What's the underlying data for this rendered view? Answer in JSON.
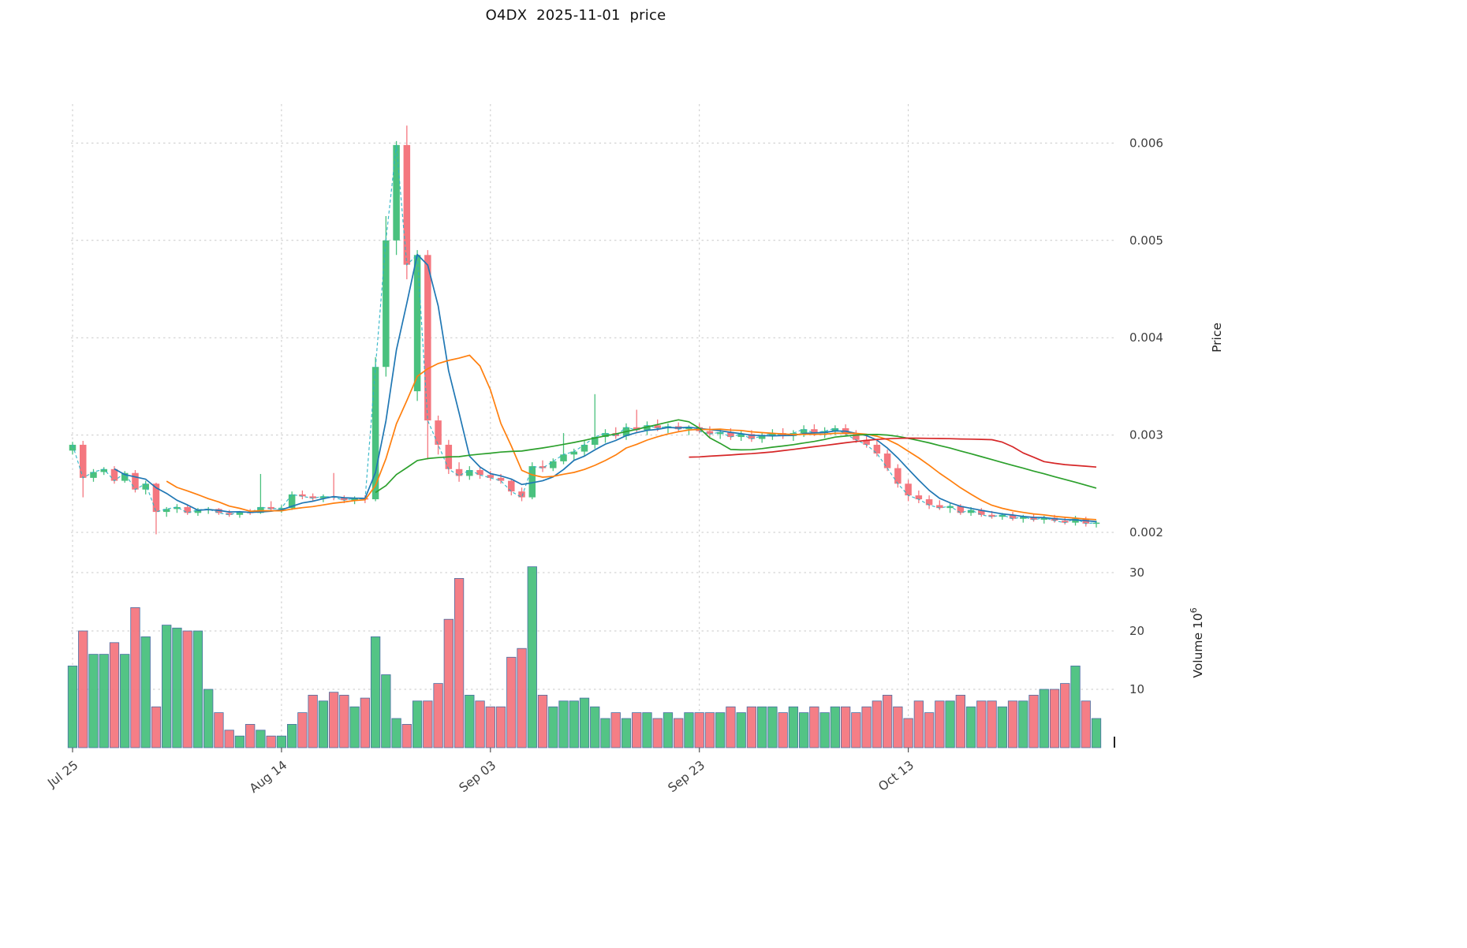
{
  "header": {
    "title": "O4DX  2025-11-01  price"
  },
  "axes": {
    "price_label": "Price",
    "volume_label_text": "Volume  10",
    "volume_label_exp": "6",
    "price_ticks": [
      {
        "v": 0.002,
        "label": "0.002"
      },
      {
        "v": 0.003,
        "label": "0.003"
      },
      {
        "v": 0.004,
        "label": "0.004"
      },
      {
        "v": 0.005,
        "label": "0.005"
      },
      {
        "v": 0.006,
        "label": "0.006"
      }
    ],
    "volume_ticks": [
      {
        "v": 10,
        "label": "10"
      },
      {
        "v": 20,
        "label": "20"
      },
      {
        "v": 30,
        "label": "30"
      }
    ],
    "x_ticks": [
      {
        "i": 0,
        "label": "Jul 25"
      },
      {
        "i": 20,
        "label": "Aug 14"
      },
      {
        "i": 40,
        "label": "Sep 03"
      },
      {
        "i": 60,
        "label": "Sep 23"
      },
      {
        "i": 80,
        "label": "Oct 13"
      }
    ]
  },
  "colors": {
    "up": "#4ac17e",
    "down": "#f4777f",
    "volume_edge": "#4a6fa5",
    "grid": "#c9c9c9",
    "tick_text": "#3f3f3f",
    "axis_label_text": "#222222"
  },
  "chart_data": {
    "type": "candlestick",
    "title": "O4DX  2025-11-01  price",
    "ylabel_price": "Price",
    "ylabel_volume": "Volume 10^6",
    "num_candles": 99,
    "price_ylim": [
      0.0019,
      0.0063
    ],
    "volume_ylim_millions": [
      0,
      37
    ],
    "grid": "dashed",
    "legend": "none",
    "x_tick_labels": [
      "Jul 25",
      "Aug 14",
      "Sep 03",
      "Sep 23",
      "Oct 13"
    ],
    "x_tick_indices": [
      0,
      20,
      40,
      60,
      80
    ],
    "open": [
      0.00284,
      0.0029,
      0.00256,
      0.00262,
      0.00265,
      0.00253,
      0.00261,
      0.00244,
      0.0025,
      0.00221,
      0.00224,
      0.00226,
      0.0022,
      0.00223,
      0.00224,
      0.0022,
      0.00218,
      0.00221,
      0.0022,
      0.00226,
      0.00224,
      0.00225,
      0.00239,
      0.00237,
      0.00235,
      0.00237,
      0.00236,
      0.00233,
      0.00235,
      0.00234,
      0.0037,
      0.005,
      0.00598,
      0.00345,
      0.00485,
      0.00315,
      0.0029,
      0.00265,
      0.00258,
      0.00264,
      0.00259,
      0.00256,
      0.00253,
      0.00242,
      0.00236,
      0.00268,
      0.00266,
      0.00273,
      0.0028,
      0.00283,
      0.0029,
      0.00298,
      0.00302,
      0.00299,
      0.00308,
      0.00305,
      0.0031,
      0.00307,
      0.00309,
      0.00306,
      0.00308,
      0.00304,
      0.00301,
      0.00303,
      0.00298,
      0.00301,
      0.00296,
      0.00299,
      0.00302,
      0.00299,
      0.00302,
      0.00306,
      0.00302,
      0.00304,
      0.00307,
      0.00301,
      0.00295,
      0.0029,
      0.00281,
      0.00266,
      0.0025,
      0.00238,
      0.00234,
      0.00228,
      0.00225,
      0.00227,
      0.0022,
      0.00223,
      0.00218,
      0.00216,
      0.00218,
      0.00214,
      0.00216,
      0.00213,
      0.00215,
      0.00212,
      0.0021,
      0.00214,
      0.00209
    ],
    "high": [
      0.00293,
      0.00294,
      0.00265,
      0.00267,
      0.00268,
      0.00263,
      0.00264,
      0.00253,
      0.00251,
      0.00226,
      0.00229,
      0.00228,
      0.00225,
      0.00226,
      0.00225,
      0.00223,
      0.00222,
      0.00224,
      0.0026,
      0.00232,
      0.00228,
      0.00242,
      0.00243,
      0.0024,
      0.00239,
      0.00261,
      0.00238,
      0.00237,
      0.00238,
      0.0038,
      0.00525,
      0.00602,
      0.00618,
      0.0049,
      0.0049,
      0.0032,
      0.00295,
      0.00272,
      0.00268,
      0.00267,
      0.00263,
      0.0026,
      0.00255,
      0.00246,
      0.00272,
      0.00274,
      0.00276,
      0.00302,
      0.00286,
      0.00294,
      0.00342,
      0.00306,
      0.00308,
      0.00312,
      0.00326,
      0.00314,
      0.00316,
      0.00312,
      0.00313,
      0.0031,
      0.00312,
      0.00309,
      0.00306,
      0.00307,
      0.00304,
      0.00305,
      0.00302,
      0.00306,
      0.00307,
      0.00305,
      0.0031,
      0.00311,
      0.00308,
      0.0031,
      0.00311,
      0.00305,
      0.003,
      0.00294,
      0.00285,
      0.0027,
      0.00254,
      0.00243,
      0.00238,
      0.00233,
      0.0023,
      0.00229,
      0.00226,
      0.00225,
      0.00222,
      0.0022,
      0.00221,
      0.00218,
      0.00219,
      0.00217,
      0.00218,
      0.00216,
      0.00217,
      0.00216,
      0.00212
    ],
    "low": [
      0.0028,
      0.00236,
      0.00252,
      0.00259,
      0.0025,
      0.00251,
      0.00241,
      0.00239,
      0.00198,
      0.00216,
      0.0022,
      0.00218,
      0.00217,
      0.00219,
      0.00218,
      0.00216,
      0.00215,
      0.00218,
      0.00219,
      0.00222,
      0.0022,
      0.00223,
      0.00234,
      0.00232,
      0.00231,
      0.00233,
      0.0023,
      0.00229,
      0.0023,
      0.00232,
      0.0036,
      0.00485,
      0.0046,
      0.00335,
      0.00275,
      0.0028,
      0.0026,
      0.00252,
      0.00254,
      0.00255,
      0.00253,
      0.0025,
      0.00238,
      0.00232,
      0.00234,
      0.00262,
      0.00263,
      0.0027,
      0.00274,
      0.00278,
      0.00286,
      0.00292,
      0.00296,
      0.00295,
      0.00302,
      0.003,
      0.00304,
      0.00302,
      0.00303,
      0.003,
      0.00302,
      0.00298,
      0.00296,
      0.00295,
      0.00294,
      0.00293,
      0.00292,
      0.00295,
      0.00296,
      0.00294,
      0.00298,
      0.00299,
      0.00297,
      0.003,
      0.00299,
      0.00292,
      0.00287,
      0.00278,
      0.00263,
      0.00246,
      0.00232,
      0.0023,
      0.00224,
      0.00223,
      0.0022,
      0.00218,
      0.00217,
      0.00216,
      0.00214,
      0.00213,
      0.00212,
      0.0021,
      0.00211,
      0.00209,
      0.0021,
      0.00208,
      0.00207,
      0.00206,
      0.00205
    ],
    "close": [
      0.0029,
      0.00256,
      0.00262,
      0.00265,
      0.00253,
      0.00261,
      0.00244,
      0.0025,
      0.00221,
      0.00224,
      0.00226,
      0.0022,
      0.00223,
      0.00224,
      0.0022,
      0.00218,
      0.00221,
      0.0022,
      0.00226,
      0.00224,
      0.00225,
      0.00239,
      0.00237,
      0.00235,
      0.00237,
      0.00236,
      0.00233,
      0.00235,
      0.00234,
      0.0037,
      0.005,
      0.00598,
      0.00475,
      0.00485,
      0.00315,
      0.0029,
      0.00265,
      0.00258,
      0.00264,
      0.00259,
      0.00256,
      0.00253,
      0.00242,
      0.00236,
      0.00268,
      0.00266,
      0.00273,
      0.0028,
      0.00283,
      0.0029,
      0.00298,
      0.00302,
      0.00299,
      0.00308,
      0.00305,
      0.0031,
      0.00307,
      0.00309,
      0.00306,
      0.00308,
      0.00304,
      0.00301,
      0.00303,
      0.00298,
      0.00301,
      0.00296,
      0.00299,
      0.00302,
      0.00299,
      0.00302,
      0.00306,
      0.00302,
      0.00304,
      0.00307,
      0.00301,
      0.00295,
      0.0029,
      0.00281,
      0.00266,
      0.0025,
      0.00238,
      0.00234,
      0.00228,
      0.00225,
      0.00227,
      0.0022,
      0.00223,
      0.00218,
      0.00216,
      0.00218,
      0.00214,
      0.00216,
      0.00213,
      0.00215,
      0.00212,
      0.0021,
      0.00214,
      0.00209,
      0.0021
    ],
    "volume_millions": [
      14,
      20,
      16,
      16,
      18,
      16,
      24,
      19,
      7,
      21,
      20.5,
      20,
      20,
      10,
      6,
      3,
      2,
      4,
      3,
      2,
      2,
      4,
      6,
      9,
      8,
      9.5,
      9,
      7,
      8.5,
      19,
      12.5,
      5,
      4,
      8,
      8,
      11,
      22,
      29,
      9,
      8,
      7,
      7,
      15.5,
      17,
      31,
      9,
      7,
      8,
      8,
      8.5,
      7,
      5,
      6,
      5,
      6,
      6,
      5,
      6,
      5,
      6,
      6,
      6,
      6,
      7,
      6,
      7,
      7,
      7,
      6,
      7,
      6,
      7,
      6,
      7,
      7,
      6,
      7,
      8,
      9,
      7,
      5,
      8,
      6,
      8,
      8,
      9,
      7,
      8,
      8,
      7,
      8,
      8,
      9,
      10,
      10,
      11,
      14,
      8,
      5
    ],
    "moving_averages": [
      {
        "period": 5,
        "color": "#1f77b4"
      },
      {
        "period": 10,
        "color": "#ff7f0e"
      },
      {
        "period": 30,
        "color": "#2ca02c"
      },
      {
        "period": 60,
        "color": "#d62728"
      }
    ],
    "close_line": {
      "color": "#2ab3c5",
      "dash": "4 3"
    }
  }
}
